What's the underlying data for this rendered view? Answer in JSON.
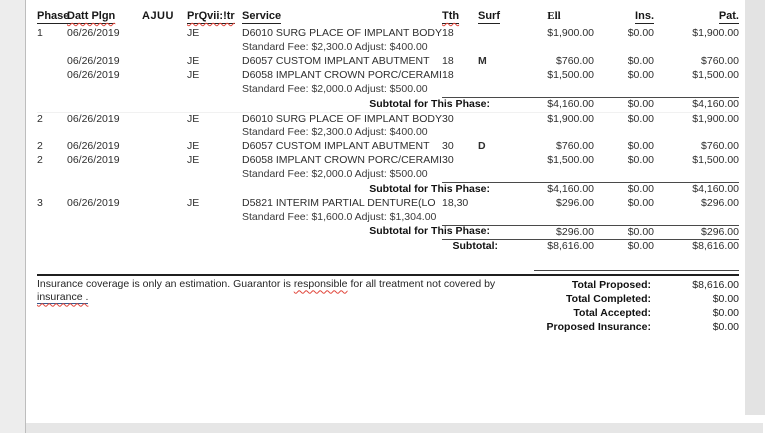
{
  "header": {
    "phase": "Phase",
    "date": "Datt Plgn",
    "ajuu": "AJUU",
    "prov": "PrQvii:!tr",
    "service": "Service",
    "tth": "Tth",
    "surf": "Surf",
    "fee": "Ell",
    "ins": "Ins.",
    "pat": "Pat."
  },
  "phases": [
    {
      "subtotal_label": "Subtotal for This Phase:",
      "subtotal": {
        "fee": "$4,160.00",
        "ins": "$0.00",
        "pat": "$4,160.00"
      },
      "rows": [
        {
          "phase": "1",
          "date": "06/26/2019",
          "prov": "JE",
          "service": "D6010 SURG PLACE OF IMPLANT BODY",
          "tth": "18",
          "surf": "",
          "fee": "$1,900.00",
          "ins": "$0.00",
          "pat": "$1,900.00",
          "note": "Standard Fee: $2,300.0 Adjust: $400.00"
        },
        {
          "phase": "",
          "date": "06/26/2019",
          "prov": "JE",
          "service": "D6057 CUSTOM IMPLANT ABUTMENT",
          "tth": "18",
          "surf": "M",
          "fee": "$760.00",
          "ins": "$0.00",
          "pat": "$760.00",
          "note": ""
        },
        {
          "phase": "",
          "date": "06/26/2019",
          "prov": "JE",
          "service": "D6058 IMPLANT CROWN PORC/CERAMI",
          "tth": "18",
          "surf": "",
          "fee": "$1,500.00",
          "ins": "$0.00",
          "pat": "$1,500.00",
          "note": "Standard Fee: $2,000.0 Adjust: $500.00"
        }
      ]
    },
    {
      "subtotal_label": "Subtotal for This Phase:",
      "subtotal": {
        "fee": "$4,160.00",
        "ins": "$0.00",
        "pat": "$4,160.00"
      },
      "rows": [
        {
          "phase": "2",
          "date": "06/26/2019",
          "prov": "JE",
          "service": "D6010 SURG PLACE OF IMPLANT BODY",
          "tth": "30",
          "surf": "",
          "fee": "$1,900.00",
          "ins": "$0.00",
          "pat": "$1,900.00",
          "note": "Standard Fee: $2,300.0 Adjust: $400.00"
        },
        {
          "phase": "2",
          "date": "06/26/2019",
          "prov": "JE",
          "service": "D6057 CUSTOM IMPLANT ABUTMENT",
          "tth": "30",
          "surf": "D",
          "fee": "$760.00",
          "ins": "$0.00",
          "pat": "$760.00",
          "note": ""
        },
        {
          "phase": "2",
          "date": "06/26/2019",
          "prov": "JE",
          "service": "D6058 IMPLANT CROWN PORC/CERAMI",
          "tth": "30",
          "surf": "",
          "fee": "$1,500.00",
          "ins": "$0.00",
          "pat": "$1,500.00",
          "note": "Standard Fee: $2,000.0 Adjust: $500.00"
        }
      ]
    },
    {
      "subtotal_label": "Subtotal for This Phase:",
      "subtotal": {
        "fee": "$296.00",
        "ins": "$0.00",
        "pat": "$296.00"
      },
      "rows": [
        {
          "phase": "3",
          "date": "06/26/2019",
          "prov": "JE",
          "service": "D5821  INTERIM PARTIAL DENTURE(LO",
          "tth": "18,30",
          "surf": "",
          "fee": "$296.00",
          "ins": "$0.00",
          "pat": "$296.00",
          "note": "Standard Fee: $1,600.0 Adjust: $1,304.00"
        }
      ]
    }
  ],
  "grand_subtotal": {
    "label": "Subtotal:",
    "fee": "$8,616.00",
    "ins": "$0.00",
    "pat": "$8,616.00"
  },
  "footer": {
    "disclaimer_part1": "Insurance coverage is only an estimation. Guarantor is",
    "disclaimer_misspelled": "responsible",
    "disclaimer_part2": "for all treatment not covered by",
    "disclaimer_line2": "insurance .",
    "totals": [
      {
        "label": "Total Proposed:",
        "value": "$8,616.00"
      },
      {
        "label": "Total Completed:",
        "value": "$0.00"
      },
      {
        "label": "Total Accepted:",
        "value": "$0.00"
      },
      {
        "label": "Proposed Insurance:",
        "value": "$0.00"
      }
    ]
  }
}
